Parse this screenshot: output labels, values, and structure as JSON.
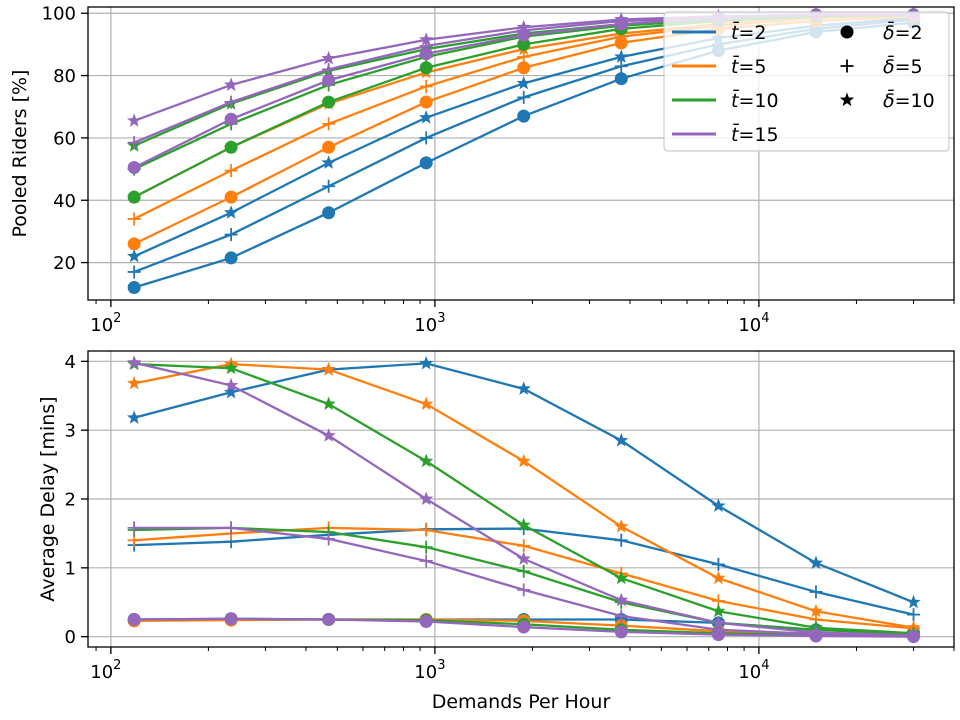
{
  "chart_data": [
    {
      "type": "line",
      "xscale": "log",
      "xlim": [
        85,
        40000
      ],
      "ylim": [
        8,
        102
      ],
      "xlabel": "",
      "ylabel": "Pooled Riders [%]",
      "grid": true,
      "x": [
        118,
        235,
        470,
        940,
        1880,
        3760,
        7500,
        15000,
        30000
      ],
      "xticks": [
        {
          "value": 100,
          "base": "10",
          "exp": "2"
        },
        {
          "value": 1000,
          "base": "10",
          "exp": "3"
        },
        {
          "value": 10000,
          "base": "10",
          "exp": "4"
        }
      ],
      "yticks": [
        20,
        40,
        60,
        80,
        100
      ],
      "series": [
        {
          "color": "#1f77b4",
          "marker": "circle",
          "values": [
            12,
            21.5,
            36,
            52,
            67,
            79,
            88,
            94,
            97
          ]
        },
        {
          "color": "#1f77b4",
          "marker": "plus",
          "values": [
            17,
            29,
            44.5,
            60,
            73,
            83,
            90,
            95,
            98
          ]
        },
        {
          "color": "#1f77b4",
          "marker": "star",
          "values": [
            22,
            36,
            52,
            66.5,
            77.5,
            86,
            92,
            96,
            98.5
          ]
        },
        {
          "color": "#ff7f0e",
          "marker": "circle",
          "values": [
            26,
            41,
            57,
            71.5,
            82.5,
            90.5,
            95,
            97.5,
            99
          ]
        },
        {
          "color": "#ff7f0e",
          "marker": "plus",
          "values": [
            34,
            49.5,
            64.5,
            76.5,
            86,
            92.5,
            96,
            98.5,
            99.5
          ]
        },
        {
          "color": "#ff7f0e",
          "marker": "star",
          "values": [
            41,
            57,
            71,
            81,
            88.5,
            93.5,
            96.5,
            98.5,
            99.5
          ]
        },
        {
          "color": "#2ca02c",
          "marker": "circle",
          "values": [
            41,
            57,
            71.5,
            82.5,
            90,
            95,
            97.5,
            99,
            99.5
          ]
        },
        {
          "color": "#2ca02c",
          "marker": "plus",
          "values": [
            50,
            64.5,
            77,
            86,
            92.5,
            96,
            98,
            99,
            99.5
          ]
        },
        {
          "color": "#2ca02c",
          "marker": "star",
          "values": [
            57.5,
            71,
            81.5,
            88.5,
            93.5,
            96.5,
            98,
            99,
            99.5
          ]
        },
        {
          "color": "#9467bd",
          "marker": "circle",
          "values": [
            50.5,
            66,
            78.5,
            87,
            93,
            96.5,
            98.5,
            99.5,
            99.5
          ]
        },
        {
          "color": "#9467bd",
          "marker": "plus",
          "values": [
            58.5,
            71.5,
            82,
            89.5,
            94.5,
            97.5,
            98.5,
            99.5,
            99.5
          ]
        },
        {
          "color": "#9467bd",
          "marker": "star",
          "values": [
            65.5,
            77,
            85.5,
            91.5,
            95.5,
            98,
            99,
            99.5,
            99.5
          ]
        }
      ]
    },
    {
      "type": "line",
      "xscale": "log",
      "xlim": [
        85,
        40000
      ],
      "ylim": [
        -0.15,
        4.15
      ],
      "xlabel": "Demands Per Hour",
      "ylabel": "Average Delay [mins]",
      "grid": true,
      "x": [
        118,
        235,
        470,
        940,
        1880,
        3760,
        7500,
        15000,
        30000
      ],
      "xticks": [
        {
          "value": 100,
          "base": "10",
          "exp": "2"
        },
        {
          "value": 1000,
          "base": "10",
          "exp": "3"
        },
        {
          "value": 10000,
          "base": "10",
          "exp": "4"
        }
      ],
      "yticks": [
        0,
        1,
        2,
        3,
        4
      ],
      "series": [
        {
          "color": "#1f77b4",
          "marker": "circle",
          "values": [
            0.25,
            0.25,
            0.25,
            0.25,
            0.25,
            0.25,
            0.2,
            0.1,
            0.05
          ]
        },
        {
          "color": "#1f77b4",
          "marker": "plus",
          "values": [
            1.33,
            1.38,
            1.48,
            1.56,
            1.57,
            1.4,
            1.05,
            0.65,
            0.32
          ]
        },
        {
          "color": "#1f77b4",
          "marker": "star",
          "values": [
            3.18,
            3.55,
            3.88,
            3.97,
            3.6,
            2.85,
            1.9,
            1.07,
            0.5
          ]
        },
        {
          "color": "#ff7f0e",
          "marker": "circle",
          "values": [
            0.23,
            0.24,
            0.25,
            0.25,
            0.23,
            0.16,
            0.08,
            0.04,
            0.02
          ]
        },
        {
          "color": "#ff7f0e",
          "marker": "plus",
          "values": [
            1.4,
            1.5,
            1.58,
            1.55,
            1.32,
            0.92,
            0.52,
            0.25,
            0.12
          ]
        },
        {
          "color": "#ff7f0e",
          "marker": "star",
          "values": [
            3.68,
            3.96,
            3.88,
            3.38,
            2.55,
            1.6,
            0.85,
            0.37,
            0.13
          ]
        },
        {
          "color": "#2ca02c",
          "marker": "circle",
          "values": [
            0.25,
            0.26,
            0.25,
            0.24,
            0.18,
            0.1,
            0.05,
            0.02,
            0.01
          ]
        },
        {
          "color": "#2ca02c",
          "marker": "plus",
          "values": [
            1.55,
            1.58,
            1.52,
            1.3,
            0.95,
            0.5,
            0.2,
            0.1,
            0.04
          ]
        },
        {
          "color": "#2ca02c",
          "marker": "star",
          "values": [
            3.96,
            3.9,
            3.38,
            2.55,
            1.62,
            0.85,
            0.37,
            0.13,
            0.05
          ]
        },
        {
          "color": "#9467bd",
          "marker": "circle",
          "values": [
            0.25,
            0.26,
            0.25,
            0.22,
            0.14,
            0.07,
            0.03,
            0.01,
            0.0
          ]
        },
        {
          "color": "#9467bd",
          "marker": "plus",
          "values": [
            1.58,
            1.58,
            1.42,
            1.1,
            0.68,
            0.3,
            0.1,
            0.04,
            0.01
          ]
        },
        {
          "color": "#9467bd",
          "marker": "star",
          "values": [
            3.98,
            3.65,
            2.92,
            2.0,
            1.13,
            0.53,
            0.2,
            0.06,
            0.02
          ]
        }
      ]
    }
  ],
  "legend": {
    "placement": "upper-right",
    "t_items": [
      {
        "color": "#1f77b4",
        "sym": "t̄",
        "val": "2"
      },
      {
        "color": "#ff7f0e",
        "sym": "t̄",
        "val": "5"
      },
      {
        "color": "#2ca02c",
        "sym": "t̄",
        "val": "10"
      },
      {
        "color": "#9467bd",
        "sym": "t̄",
        "val": "15"
      }
    ],
    "delta_items": [
      {
        "marker": "circle",
        "sym": "δ̄",
        "val": "2"
      },
      {
        "marker": "plus",
        "sym": "δ̄",
        "val": "5"
      },
      {
        "marker": "star",
        "sym": "δ̄",
        "val": "10"
      }
    ]
  }
}
